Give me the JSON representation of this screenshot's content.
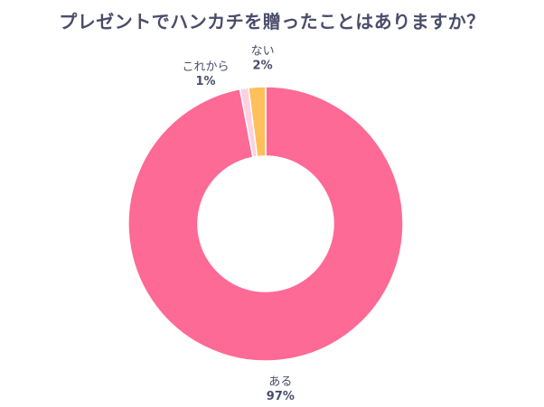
{
  "chart_data": {
    "type": "pie",
    "title": "プレゼントでハンカチを贈ったことはありますか？",
    "categories": [
      "ある",
      "これから",
      "ない"
    ],
    "values": [
      97,
      1,
      2
    ],
    "value_labels": [
      "97%",
      "1%",
      "2%"
    ],
    "colors": [
      "#fd6a96",
      "#ffd0df",
      "#ffbf5a"
    ],
    "donut": true,
    "legend": "none",
    "labels_position": "outside"
  }
}
